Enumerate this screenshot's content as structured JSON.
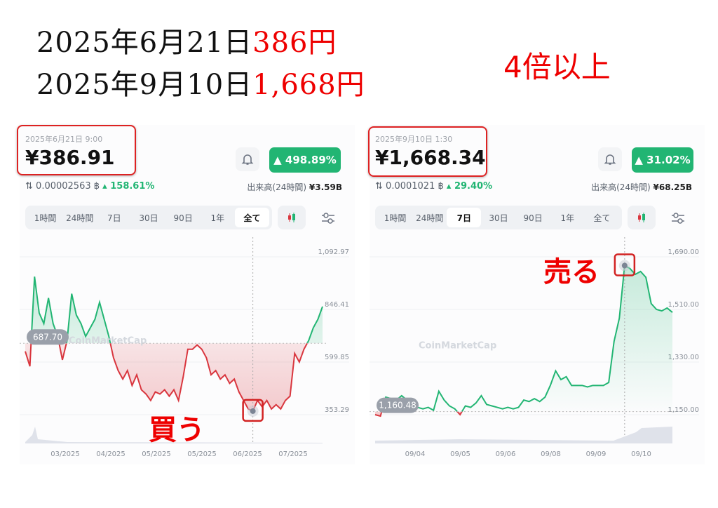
{
  "header": {
    "line1_date": "2025年6月21日",
    "line1_price": "386円",
    "line2_date": "2025年9月10日",
    "line2_price": "1,668円",
    "multiplier": "4倍以上"
  },
  "annotations": {
    "buy": "買う",
    "sell": "売る"
  },
  "colors": {
    "up": "#22b573",
    "down": "#d9363e",
    "highlight": "#d22222",
    "annotation": "#ee0000"
  },
  "panels": [
    {
      "timestamp": "2025年6月21日 9:00",
      "price": "¥386.91",
      "change": "498.89%",
      "btc_price": "0.00002563 ฿",
      "btc_change": "158.61%",
      "volume_label": "出来高(24時間)",
      "volume": "¥3.59B",
      "tabs": [
        "1時間",
        "24時間",
        "7日",
        "30日",
        "90日",
        "1年",
        "全て"
      ],
      "active_tab": "全て",
      "watermark": "CoinMarketCap",
      "baseline_label": "687.70"
    },
    {
      "timestamp": "2025年9月10日 1:30",
      "price": "¥1,668.34",
      "change": "31.02%",
      "btc_price": "0.0001021 ฿",
      "btc_change": "29.40%",
      "volume_label": "出来高(24時間)",
      "volume": "¥68.25B",
      "tabs": [
        "1時間",
        "24時間",
        "7日",
        "30日",
        "90日",
        "1年",
        "全て"
      ],
      "active_tab": "7日",
      "watermark": "CoinMarketCap",
      "baseline_label": "1,160.48"
    }
  ],
  "chart_data": [
    {
      "type": "line",
      "baseline": 687.7,
      "ylim": [
        353.29,
        1092.97
      ],
      "y_ticks": [
        "1,092.97",
        "846.41",
        "599.85",
        "353.29"
      ],
      "x_ticks": [
        "03/2025",
        "04/2025",
        "05/2025",
        "05/2025",
        "06/2025",
        "07/2025"
      ],
      "values": [
        650,
        580,
        1000,
        830,
        780,
        900,
        780,
        720,
        610,
        700,
        920,
        820,
        780,
        720,
        760,
        800,
        880,
        800,
        720,
        620,
        560,
        520,
        560,
        490,
        540,
        470,
        450,
        420,
        460,
        450,
        470,
        440,
        470,
        420,
        530,
        660,
        660,
        680,
        660,
        620,
        540,
        560,
        520,
        540,
        500,
        520,
        460,
        420,
        380,
        370,
        420,
        390,
        420,
        380,
        400,
        380,
        420,
        440,
        640,
        600,
        660,
        700,
        760,
        800,
        860
      ],
      "marker_index": 49
    },
    {
      "type": "line",
      "baseline": 1160.48,
      "ylim": [
        1150,
        1690
      ],
      "y_ticks": [
        "1,690.00",
        "1,510.00",
        "1,330.00",
        "1,150.00"
      ],
      "x_ticks": [
        "09/04",
        "09/05",
        "09/06",
        "09/08",
        "09/09",
        "09/10"
      ],
      "values": [
        1150,
        1145,
        1210,
        1205,
        1200,
        1215,
        1200,
        1180,
        1175,
        1170,
        1175,
        1165,
        1230,
        1200,
        1180,
        1170,
        1150,
        1180,
        1175,
        1190,
        1215,
        1185,
        1180,
        1175,
        1170,
        1175,
        1170,
        1175,
        1200,
        1195,
        1205,
        1195,
        1210,
        1250,
        1300,
        1270,
        1280,
        1250,
        1250,
        1250,
        1245,
        1250,
        1250,
        1250,
        1260,
        1400,
        1480,
        1660,
        1650,
        1630,
        1640,
        1620,
        1530,
        1510,
        1505,
        1515,
        1500
      ],
      "marker_index": 47
    }
  ]
}
